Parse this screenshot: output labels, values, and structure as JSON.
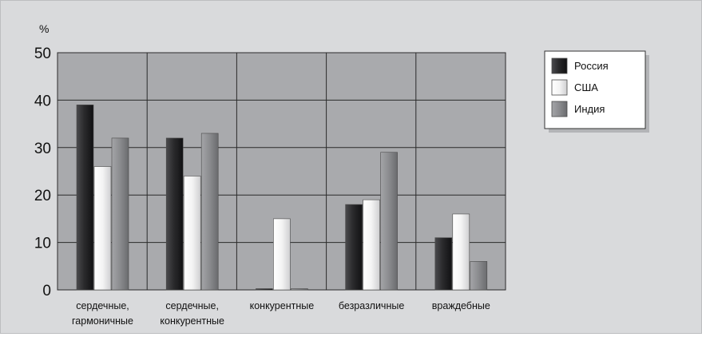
{
  "chart_data": {
    "type": "bar",
    "title": "",
    "xlabel": "",
    "ylabel": "%",
    "ylim": [
      0,
      50
    ],
    "yticks": [
      0,
      10,
      20,
      30,
      40,
      50
    ],
    "grid": true,
    "legend_position": "top-right",
    "categories": [
      [
        "сердечные,",
        "гармоничные"
      ],
      [
        "сердечные,",
        "конкурентные"
      ],
      [
        "конкурентные"
      ],
      [
        "безразличные"
      ],
      [
        "враждебные"
      ]
    ],
    "series": [
      {
        "name": "Россия",
        "color": "#2e2e30",
        "values": [
          39,
          32,
          0,
          18,
          11
        ]
      },
      {
        "name": "США",
        "color": "#f4f4f4",
        "values": [
          26,
          24,
          15,
          19,
          16
        ]
      },
      {
        "name": "Индия",
        "color": "#8a8b8e",
        "values": [
          32,
          33,
          0,
          29,
          6
        ]
      }
    ]
  }
}
